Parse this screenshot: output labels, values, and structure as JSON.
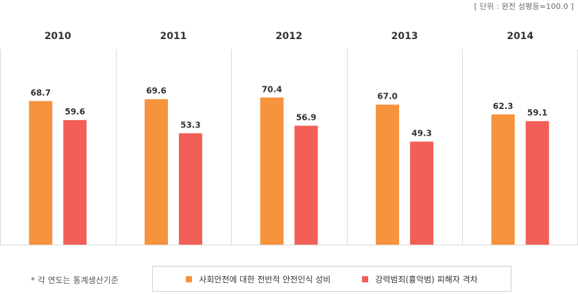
{
  "unit_note": "[ 단위 : 완전 성평등=100.0 ]",
  "footnote": "* 각 연도는 통계생산기준",
  "colors": {
    "series1": "#F7923D",
    "series2": "#F15F57",
    "grid": "#D9D9D9"
  },
  "chart_data": {
    "type": "bar",
    "categories": [
      "2010",
      "2011",
      "2012",
      "2013",
      "2014"
    ],
    "series": [
      {
        "name": "사회안전에 대한 전반적 안전인식 성비",
        "values": [
          68.7,
          69.6,
          70.4,
          67.0,
          62.3
        ]
      },
      {
        "name": "강력범죄(흉악범) 피해자 격차",
        "values": [
          59.6,
          53.3,
          56.9,
          49.3,
          59.1
        ]
      }
    ],
    "value_labels": [
      [
        "68.7",
        "69.6",
        "70.4",
        "67.0",
        "62.3"
      ],
      [
        "59.6",
        "53.3",
        "56.9",
        "49.3",
        "59.1"
      ]
    ],
    "ylim": [
      0,
      100
    ],
    "legend_position": "bottom",
    "grid": false
  }
}
